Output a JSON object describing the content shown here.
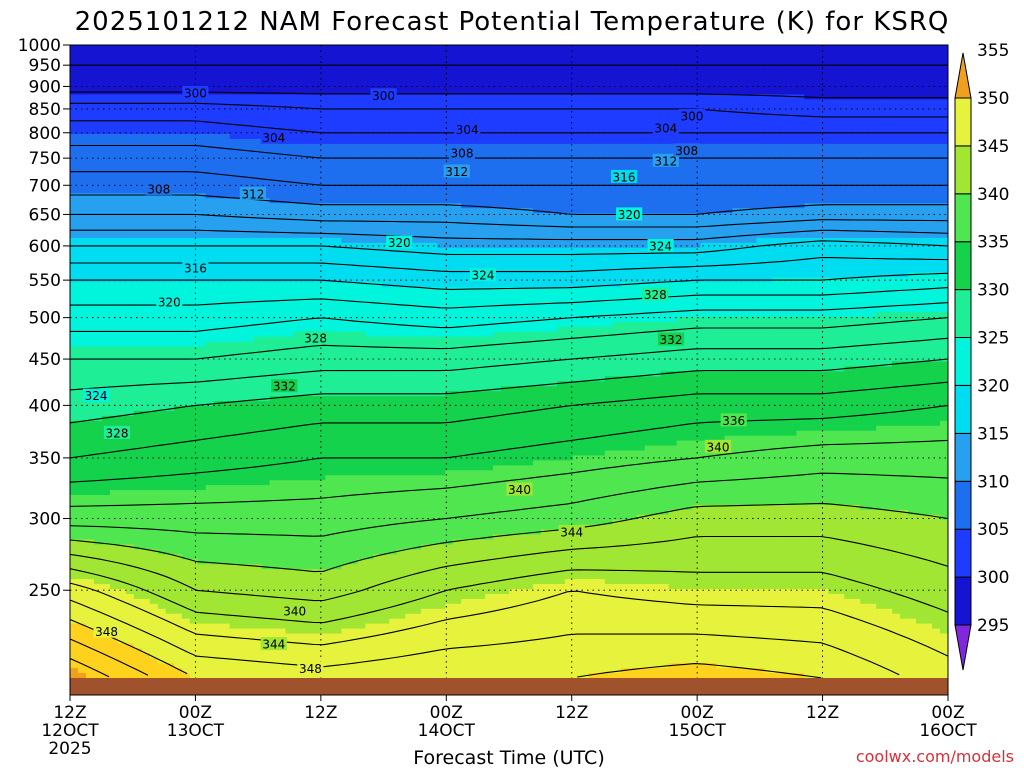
{
  "chart_data": {
    "type": "heatmap",
    "title": "2025101212 NAM Forecast Potential Temperature (K) for KSRQ",
    "xlabel": "Forecast Time (UTC)",
    "x_ticks": [
      {
        "hour": 0,
        "line1": "12Z",
        "line2": "12OCT",
        "line3": "2025"
      },
      {
        "hour": 12,
        "line1": "00Z",
        "line2": "13OCT",
        "line3": ""
      },
      {
        "hour": 24,
        "line1": "12Z",
        "line2": "",
        "line3": ""
      },
      {
        "hour": 36,
        "line1": "00Z",
        "line2": "14OCT",
        "line3": ""
      },
      {
        "hour": 48,
        "line1": "12Z",
        "line2": "",
        "line3": ""
      },
      {
        "hour": 60,
        "line1": "00Z",
        "line2": "15OCT",
        "line3": ""
      },
      {
        "hour": 72,
        "line1": "12Z",
        "line2": "",
        "line3": ""
      },
      {
        "hour": 84,
        "line1": "00Z",
        "line2": "16OCT",
        "line3": ""
      }
    ],
    "xlim": [
      0,
      84
    ],
    "y_ticks": [
      250,
      300,
      350,
      400,
      450,
      500,
      550,
      600,
      650,
      700,
      750,
      800,
      850,
      900,
      950,
      1000
    ],
    "ylim": [
      1000,
      200
    ],
    "y_scale": "log-pressure",
    "grid": true,
    "colorbar": {
      "levels": [
        295,
        300,
        305,
        310,
        315,
        320,
        325,
        330,
        335,
        340,
        345,
        350,
        355
      ],
      "colors": [
        "#1414d2",
        "#1e3cff",
        "#1e6ef0",
        "#28a0f0",
        "#00dcf0",
        "#00f5dc",
        "#1eee96",
        "#14d24b",
        "#50e650",
        "#a0e632",
        "#e6f23c",
        "#ffd21e",
        "#f0a01e"
      ],
      "tick_labels": [
        "295",
        "300",
        "305",
        "310",
        "315",
        "320",
        "325",
        "330",
        "335",
        "340",
        "345",
        "350",
        "355"
      ]
    },
    "ground_color": "#a0522d",
    "profile_levels": [
      1000,
      950,
      900,
      850,
      800,
      750,
      700,
      650,
      600,
      550,
      500,
      450,
      400,
      350,
      300,
      250,
      200
    ],
    "profiles": [
      {
        "hour": 0,
        "theta": [
          297,
          298,
          299,
          303,
          305,
          307,
          309,
          312,
          316,
          320,
          323,
          326,
          329,
          332,
          337,
          347,
          356
        ]
      },
      {
        "hour": 12,
        "theta": [
          298,
          298,
          299,
          303,
          305,
          307,
          309,
          312,
          316,
          320,
          323,
          326,
          330,
          333,
          337,
          342,
          350
        ]
      },
      {
        "hour": 24,
        "theta": [
          297,
          298,
          299,
          302,
          304,
          306,
          308,
          311,
          316,
          320,
          324,
          327,
          331,
          334,
          337,
          341,
          349
        ]
      },
      {
        "hour": 36,
        "theta": [
          298,
          298,
          299,
          302,
          304,
          306,
          308,
          311,
          315,
          319,
          323,
          327,
          331,
          334,
          338,
          344,
          350
        ]
      },
      {
        "hour": 48,
        "theta": [
          297,
          298,
          299,
          302,
          304,
          306,
          308,
          310,
          315,
          319,
          324,
          328,
          332,
          335,
          339,
          346,
          350
        ]
      },
      {
        "hour": 60,
        "theta": [
          298,
          298,
          299,
          302,
          304,
          306,
          308,
          310,
          315,
          320,
          325,
          329,
          333,
          336,
          341,
          345,
          351
        ]
      },
      {
        "hour": 72,
        "theta": [
          297,
          298,
          299,
          301,
          304,
          306,
          308,
          311,
          317,
          320,
          325,
          329,
          333,
          337,
          341,
          345,
          350
        ]
      },
      {
        "hour": 84,
        "theta": [
          298,
          298,
          299,
          301,
          304,
          306,
          308,
          311,
          316,
          321,
          326,
          330,
          334,
          337,
          340,
          343,
          347
        ]
      }
    ],
    "contour_interval": 2,
    "contour_labels": [
      {
        "value": 348,
        "hour": 23,
        "pressure": 205
      },
      {
        "value": 348,
        "hour": 3.5,
        "pressure": 225
      },
      {
        "value": 344,
        "hour": 19.5,
        "pressure": 218
      },
      {
        "value": 340,
        "hour": 21.5,
        "pressure": 237
      },
      {
        "value": 344,
        "hour": 48,
        "pressure": 290
      },
      {
        "value": 340,
        "hour": 43,
        "pressure": 323
      },
      {
        "value": 340,
        "hour": 62,
        "pressure": 360
      },
      {
        "value": 336,
        "hour": 63.5,
        "pressure": 385
      },
      {
        "value": 328,
        "hour": 4.5,
        "pressure": 373
      },
      {
        "value": 324,
        "hour": 2.5,
        "pressure": 410
      },
      {
        "value": 332,
        "hour": 20.5,
        "pressure": 420
      },
      {
        "value": 328,
        "hour": 23.5,
        "pressure": 475
      },
      {
        "value": 332,
        "hour": 57.5,
        "pressure": 473
      },
      {
        "value": 320,
        "hour": 9.5,
        "pressure": 520
      },
      {
        "value": 328,
        "hour": 56,
        "pressure": 530
      },
      {
        "value": 324,
        "hour": 39.5,
        "pressure": 557
      },
      {
        "value": 316,
        "hour": 12,
        "pressure": 567
      },
      {
        "value": 320,
        "hour": 31.5,
        "pressure": 605
      },
      {
        "value": 324,
        "hour": 56.5,
        "pressure": 600
      },
      {
        "value": 320,
        "hour": 53.5,
        "pressure": 650
      },
      {
        "value": 312,
        "hour": 17.5,
        "pressure": 685
      },
      {
        "value": 308,
        "hour": 8.5,
        "pressure": 693
      },
      {
        "value": 316,
        "hour": 53,
        "pressure": 715
      },
      {
        "value": 312,
        "hour": 37,
        "pressure": 725
      },
      {
        "value": 312,
        "hour": 57,
        "pressure": 745
      },
      {
        "value": 308,
        "hour": 37.5,
        "pressure": 760
      },
      {
        "value": 308,
        "hour": 59,
        "pressure": 765
      },
      {
        "value": 304,
        "hour": 19.5,
        "pressure": 790
      },
      {
        "value": 304,
        "hour": 38,
        "pressure": 807
      },
      {
        "value": 304,
        "hour": 57,
        "pressure": 810
      },
      {
        "value": 300,
        "hour": 59.5,
        "pressure": 835
      },
      {
        "value": 300,
        "hour": 12,
        "pressure": 885
      },
      {
        "value": 300,
        "hour": 30,
        "pressure": 880
      }
    ]
  },
  "credit": "coolwx.com/models"
}
